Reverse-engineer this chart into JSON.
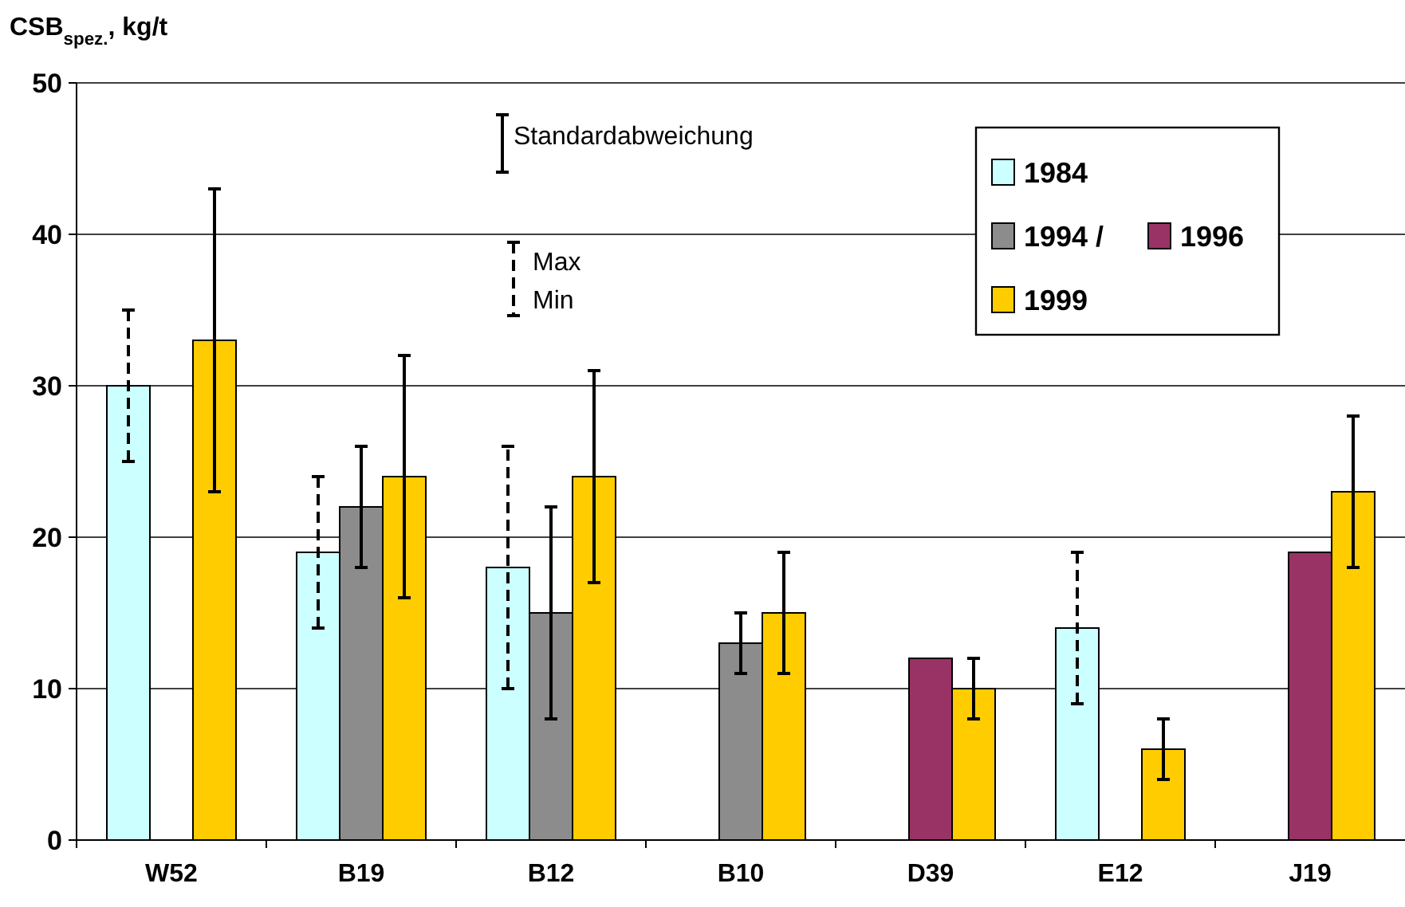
{
  "chart_data": {
    "type": "bar",
    "ylabel": "CSB$_{spez.}$, kg/t",
    "categories": [
      "W52",
      "B19",
      "B12",
      "B10",
      "D39",
      "E12",
      "J19"
    ],
    "series": [
      {
        "name": "1984",
        "color": "#ccffff",
        "line_style": "dashed",
        "values": [
          30,
          19,
          18,
          null,
          null,
          14,
          null
        ],
        "errors": [
          [
            25,
            35
          ],
          [
            14,
            24
          ],
          [
            10,
            26
          ],
          null,
          null,
          [
            9,
            19
          ],
          null
        ]
      },
      {
        "name": "1994 /",
        "color": "#8c8c8c",
        "line_style": "solid",
        "values": [
          null,
          22,
          15,
          13,
          null,
          null,
          null
        ],
        "errors": [
          null,
          [
            18,
            26
          ],
          [
            8,
            22
          ],
          [
            11,
            15
          ],
          null,
          null,
          null
        ]
      },
      {
        "name": "1996",
        "color": "#993366",
        "values": [
          null,
          null,
          null,
          null,
          12,
          null,
          19
        ],
        "errors": [
          null,
          null,
          null,
          null,
          null,
          null,
          null
        ]
      },
      {
        "name": "1999",
        "color": "#ffcc00",
        "line_style": "solid",
        "values": [
          33,
          24,
          24,
          15,
          10,
          6,
          23
        ],
        "errors": [
          [
            23,
            43
          ],
          [
            16,
            32
          ],
          [
            17,
            31
          ],
          [
            11,
            19
          ],
          [
            8,
            12
          ],
          [
            4,
            8
          ],
          [
            18,
            28
          ]
        ]
      }
    ],
    "ylim": [
      0,
      50
    ],
    "yticks": [
      0,
      10,
      20,
      30,
      40,
      50
    ],
    "grid": "y",
    "legend": "top right",
    "annotations": [
      "Standardabweichung",
      "Max",
      "Min"
    ]
  }
}
